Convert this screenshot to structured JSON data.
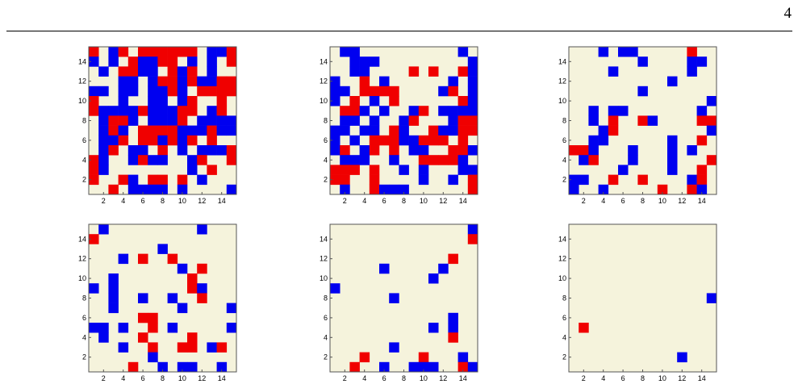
{
  "page": {
    "number": "4"
  },
  "colors": {
    "background": "#F5F3DC",
    "state_a": "#F00000",
    "state_b": "#0000F0",
    "frame": "#555555"
  },
  "chart_data": [
    {
      "type": "heatmap",
      "panel": "top-left",
      "grid_size": 15,
      "x_ticks": [
        2,
        4,
        6,
        8,
        10,
        12,
        14
      ],
      "y_ticks": [
        2,
        4,
        6,
        8,
        10,
        12,
        14
      ],
      "legend": "none",
      "encoding": "rows listed from y=15 (top) to y=1 (bottom); columns x=1..15; R=red, B=blue, .=empty",
      "grid": [
        "R.BR.RRRRRR.BBR",
        "B.B.RBBRR.B.B.R",
        ".B.RRBB.RBR.B..",
        "...BB.BRRBRBBRR",
        "BB.BB.BBRB.RRRR",
        "R..B..BB.BR..R.",
        "RBBBBRBBBRR.BR.",
        ".BRRB.BBBR.BBBB",
        ".BRB.RRRRBBBRBB",
        ".BBR.RRBRBR.R..",
        ".BR.BB.R.B.BBBR",
        "RB..BRBB..BR..R",
        "RB........B.R..",
        "R..RB.RR.R.B...",
        "..R.BBBB.B....B"
      ]
    },
    {
      "type": "heatmap",
      "panel": "top-middle",
      "grid_size": 15,
      "x_ticks": [
        2,
        4,
        6,
        8,
        10,
        12,
        14
      ],
      "y_ticks": [
        2,
        4,
        6,
        8,
        10,
        12,
        14
      ],
      "legend": "none",
      "encoding": "rows listed from y=15 (top) to y=1 (bottom); columns x=1..15; R=red, B=blue, .=empty",
      "grid": [
        ".BB..........B.",
        "..BBB.........B",
        "..BB....R.R..RB",
        "B..R.B......B.B",
        "BB.RRRR....BR.B",
        "B.R.B.R......RB",
        ".RRB.B..BR.BBBB",
        ".BB.B..BR...BRR",
        "BB.BB.RB..RBBRR",
        "B.B.RRRBBRRR.R.",
        "BR.BR.R.BB..RRB",
        ".BBB..B..RRRRB.",
        "RRR.R..B.B...BB",
        "RR..R....B..B.R",
        ".B..RBBB......R"
      ]
    },
    {
      "type": "heatmap",
      "panel": "top-right",
      "grid_size": 15,
      "x_ticks": [
        2,
        4,
        6,
        8,
        10,
        12,
        14
      ],
      "y_ticks": [
        2,
        4,
        6,
        8,
        10,
        12,
        14
      ],
      "legend": "none",
      "encoding": "rows listed from y=15 (top) to y=1 (bottom); columns x=1..15; R=red, B=blue, .=empty",
      "grid": [
        "...B.BB.....R..",
        ".......B....BB.",
        "....B.......B..",
        "..........B....",
        ".......B.......",
        "..............B",
        "..B.BB.......B.",
        "..B.R..RB....RR",
        "...BR.........B",
        "..BB......B..R.",
        "RRB...B...B.B..",
        ".BR...B...B...R",
        ".....B....B..R.",
        "BB..R..R....BR.",
        "B..B.....R..RB."
      ]
    },
    {
      "type": "heatmap",
      "panel": "bottom-left",
      "grid_size": 15,
      "x_ticks": [
        2,
        4,
        6,
        8,
        10,
        12,
        14
      ],
      "y_ticks": [
        2,
        4,
        6,
        8,
        10,
        12,
        14
      ],
      "legend": "none",
      "encoding": "rows listed from y=15 (top) to y=1 (bottom); columns x=1..15; R=red, B=blue, .=empty",
      "grid": [
        ".B.........B...",
        "R..............",
        ".......B.......",
        "...B.R..R......",
        ".........B.R...",
        "..B.......R....",
        "B.B.......RB...",
        "..B..B..B..R...",
        "..B......B....B",
        ".....RR........",
        "BB.B..R.B.....B",
        ".B...R....R....",
        "...B..R..RR.BR.",
        "......B........",
        "....R..B.BB..B."
      ]
    },
    {
      "type": "heatmap",
      "panel": "bottom-middle",
      "grid_size": 15,
      "x_ticks": [
        2,
        4,
        6,
        8,
        10,
        12,
        14
      ],
      "y_ticks": [
        2,
        4,
        6,
        8,
        10,
        12,
        14
      ],
      "legend": "none",
      "encoding": "rows listed from y=15 (top) to y=1 (bottom); columns x=1..15; R=red, B=blue, .=empty",
      "grid": [
        "..............B",
        "..............R",
        "...............",
        "............R..",
        ".....B.....B...",
        "..........B....",
        "B..............",
        "......B........",
        "...............",
        "............B..",
        "..........B.B..",
        "............R..",
        "......B........",
        "...R.....R...B.",
        "..R..B..BBB..RB"
      ]
    },
    {
      "type": "heatmap",
      "panel": "bottom-right",
      "grid_size": 15,
      "x_ticks": [
        2,
        4,
        6,
        8,
        10,
        12,
        14
      ],
      "y_ticks": [
        2,
        4,
        6,
        8,
        10,
        12,
        14
      ],
      "legend": "none",
      "encoding": "rows listed from y=15 (top) to y=1 (bottom); columns x=1..15; R=red, B=blue, .=empty",
      "grid": [
        "...............",
        "...............",
        "...............",
        "...............",
        "...............",
        "...............",
        "...............",
        "..............B",
        "...............",
        "...............",
        ".R.............",
        "...............",
        "...............",
        "...........B...",
        "..............."
      ]
    }
  ]
}
